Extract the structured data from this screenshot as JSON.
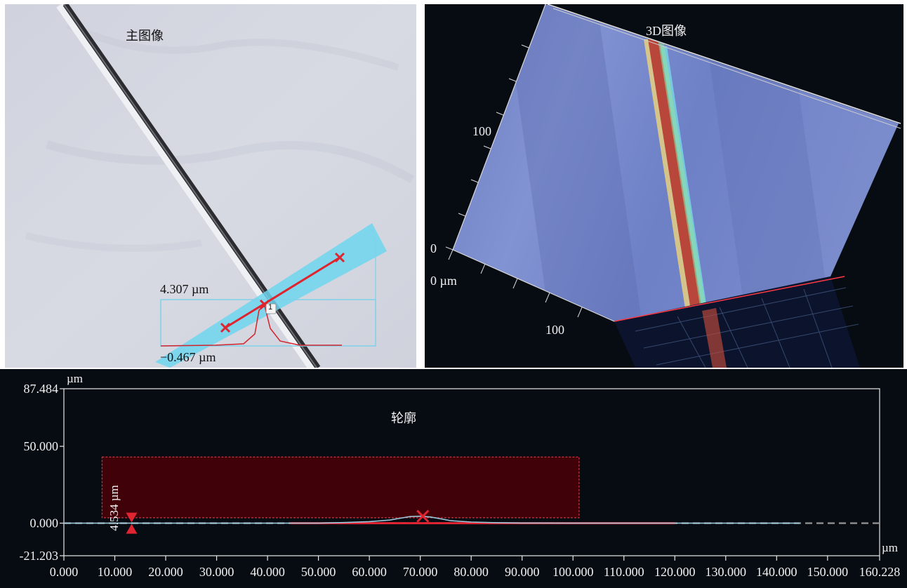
{
  "main_image": {
    "title": "主图像",
    "height_max_label": "4.307 µm",
    "height_min_label": "−0.467 µm",
    "marker_number": "1"
  },
  "view_3d": {
    "title": "3D图像",
    "axis_label_100_left": "100",
    "axis_label_0": "0",
    "axis_label_0_um": "0 µm",
    "axis_label_100_bottom": "100"
  },
  "profile": {
    "title": "轮廓",
    "y_unit": "µm",
    "x_unit": "µm",
    "y_ticks": [
      "87.484",
      "50.000",
      "0.000",
      "-21.203"
    ],
    "x_ticks": [
      "0.000",
      "10.000",
      "20.000",
      "30.000",
      "40.000",
      "50.000",
      "60.000",
      "70.000",
      "80.000",
      "90.000",
      "100.000",
      "110.000",
      "120.000",
      "130.000",
      "140.000",
      "150.000",
      "160.228"
    ],
    "measure_label": "4.534 µm",
    "colors": {
      "roi_fill": "#4a0008",
      "roi_border": "#d3323c",
      "profile_line": "#9ec8dc",
      "marker": "#e02431",
      "dashed": "#8a8a8a"
    },
    "chart_data": {
      "type": "line",
      "x_range": [
        0,
        160.228
      ],
      "y_range": [
        -21.203,
        87.484
      ],
      "series": [
        {
          "x": [
            0,
            10,
            20,
            30,
            40,
            50,
            55,
            60,
            64,
            66,
            68,
            70,
            72,
            74,
            76,
            80,
            85,
            90,
            100,
            110,
            120,
            130,
            140,
            144.5
          ],
          "y": [
            0,
            0,
            0,
            0,
            0,
            0,
            0.4,
            1.0,
            2.0,
            3.2,
            4.3,
            4.5,
            4.0,
            2.8,
            1.6,
            0.7,
            0.3,
            0.1,
            0,
            0,
            0,
            0,
            0,
            0
          ]
        }
      ],
      "roi": {
        "x0": 7.5,
        "x1": 101.2,
        "y0": 3.5,
        "y1": 43.0
      },
      "measure_marker_x": 13.3,
      "peak_marker": {
        "x": 70.5,
        "y": 4.5
      }
    }
  }
}
